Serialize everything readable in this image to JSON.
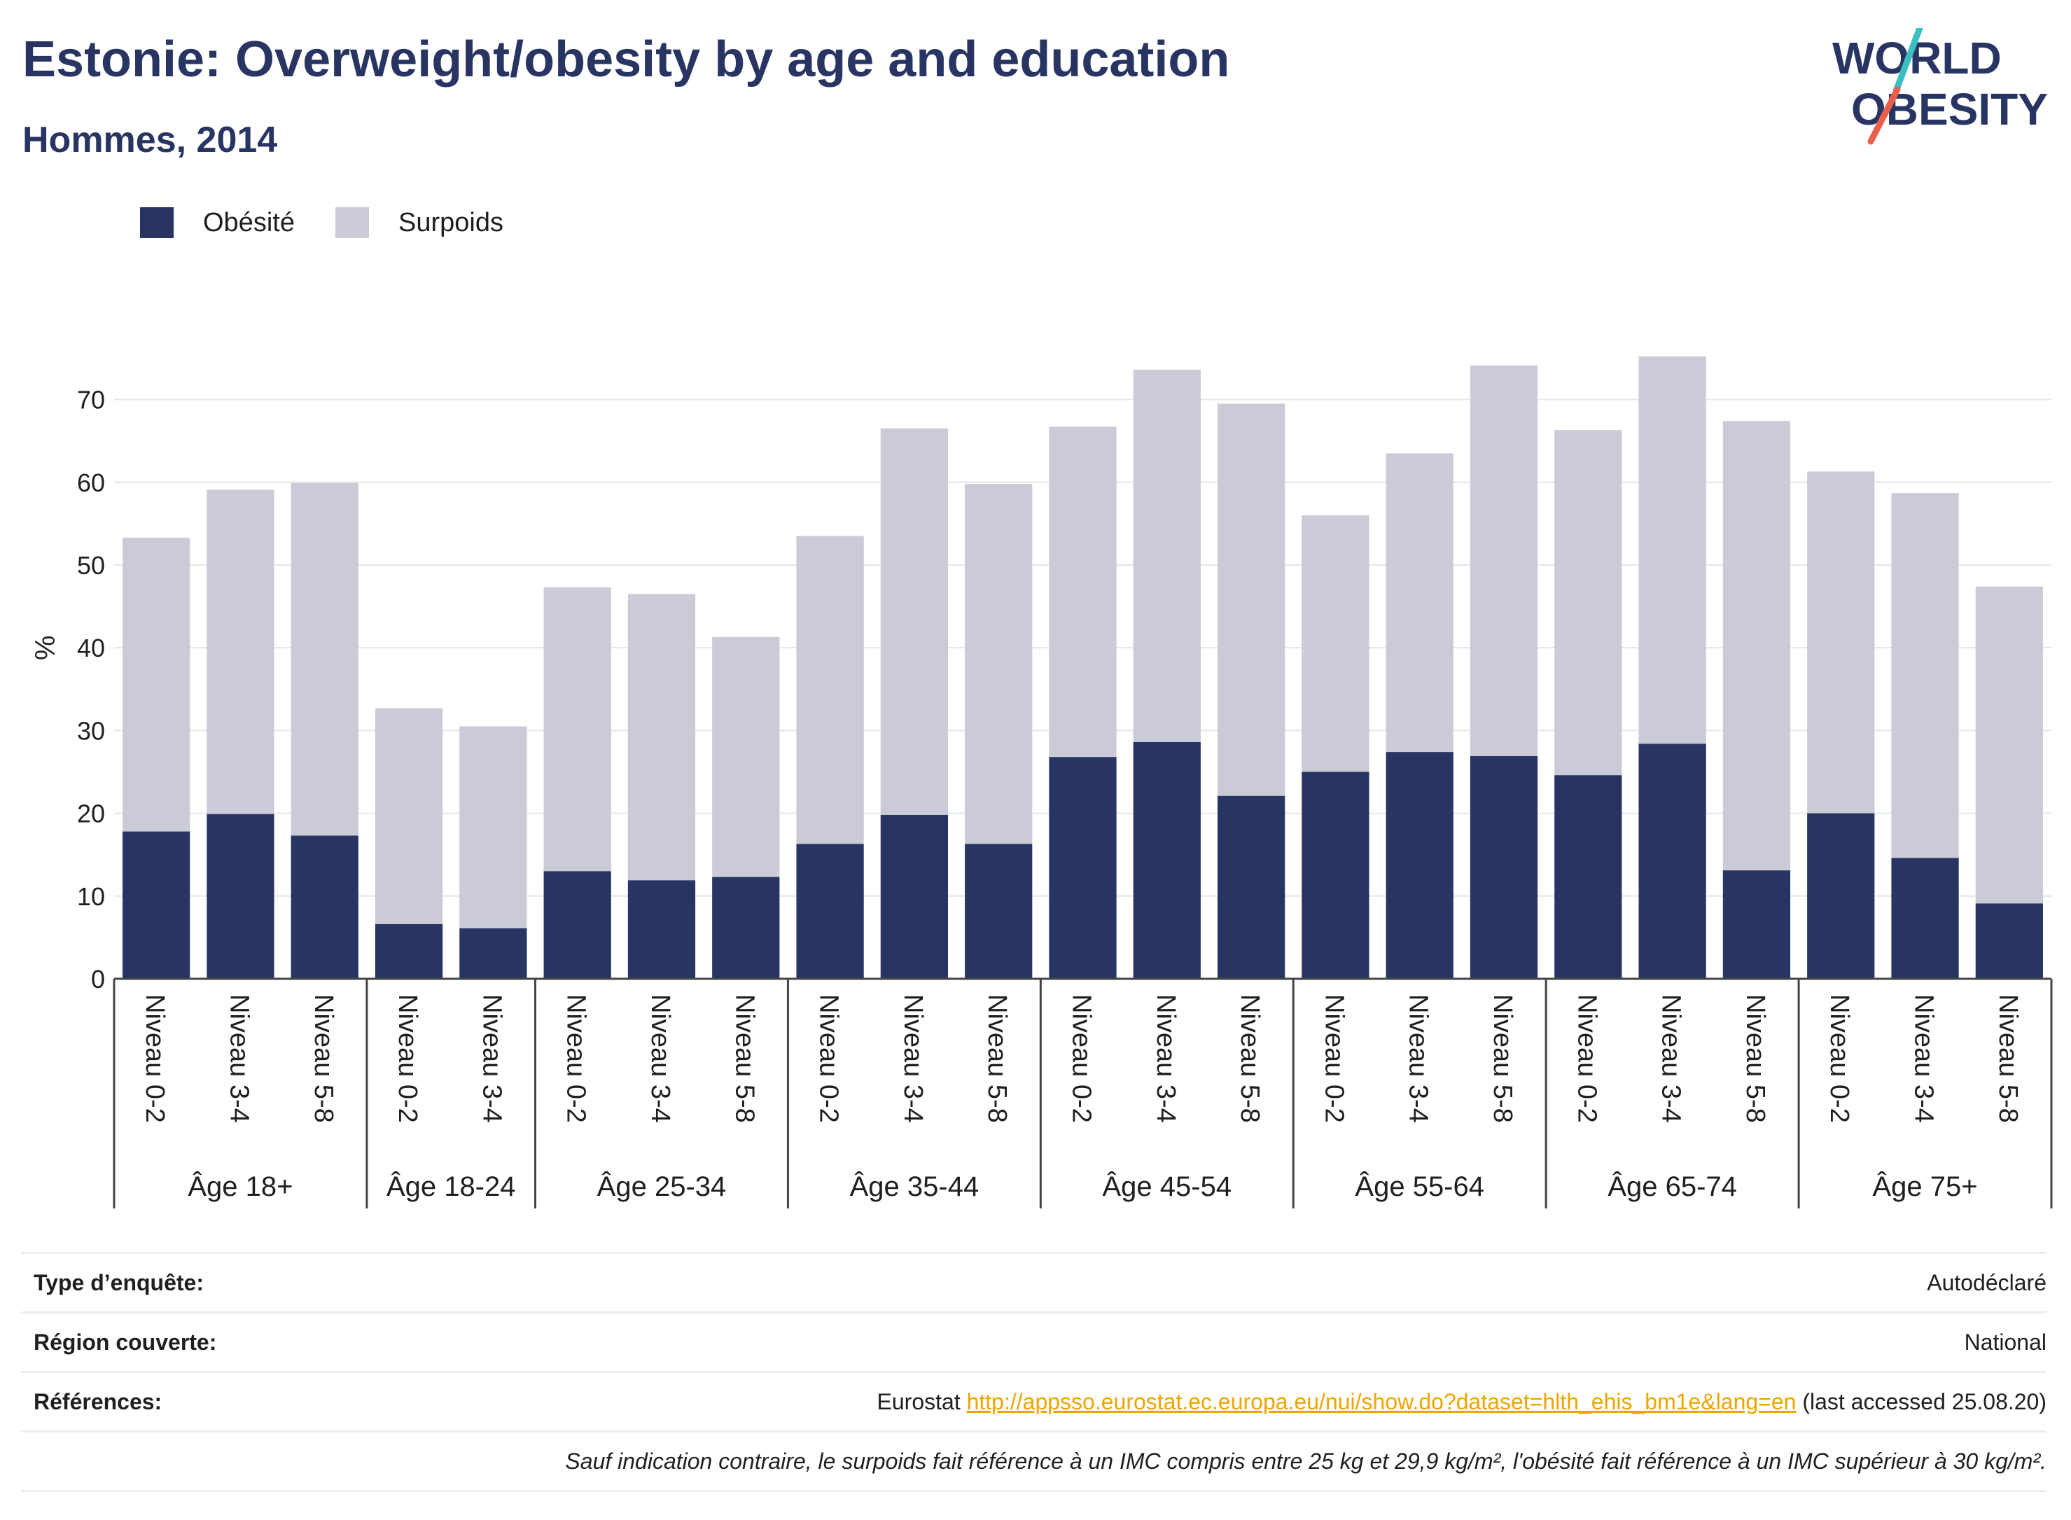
{
  "header": {
    "title": "Estonie: Overweight/obesity by age and education",
    "subtitle": "Hommes, 2014"
  },
  "logo": {
    "line1": "WORLD",
    "line2": "OBESITY",
    "colors": {
      "text": "#283462",
      "slash_top": "#3cbfc0",
      "slash_bottom": "#e8604c"
    }
  },
  "colors": {
    "obesity": "#283462",
    "overweight": "#cacbd7",
    "grid": "#e6e6ea",
    "axis": "#444444"
  },
  "chart_data": {
    "type": "bar",
    "stacked": true,
    "title": "Estonie: Overweight/obesity by age and education",
    "subtitle": "Hommes, 2014",
    "ylabel": "%",
    "ylim": [
      0,
      78
    ],
    "yticks": [
      0,
      10,
      20,
      30,
      40,
      50,
      60,
      70
    ],
    "grid": true,
    "legend_position": "top-left",
    "groups": [
      {
        "label": "Âge 18+",
        "categories": [
          "Niveau 0-2",
          "Niveau 3-4",
          "Niveau 5-8"
        ]
      },
      {
        "label": "Âge 18-24",
        "categories": [
          "Niveau 0-2",
          "Niveau 3-4"
        ]
      },
      {
        "label": "Âge 25-34",
        "categories": [
          "Niveau 0-2",
          "Niveau 3-4",
          "Niveau 5-8"
        ]
      },
      {
        "label": "Âge 35-44",
        "categories": [
          "Niveau 0-2",
          "Niveau 3-4",
          "Niveau 5-8"
        ]
      },
      {
        "label": "Âge 45-54",
        "categories": [
          "Niveau 0-2",
          "Niveau 3-4",
          "Niveau 5-8"
        ]
      },
      {
        "label": "Âge 55-64",
        "categories": [
          "Niveau 0-2",
          "Niveau 3-4",
          "Niveau 5-8"
        ]
      },
      {
        "label": "Âge 65-74",
        "categories": [
          "Niveau 0-2",
          "Niveau 3-4",
          "Niveau 5-8"
        ]
      },
      {
        "label": "Âge 75+",
        "categories": [
          "Niveau 0-2",
          "Niveau 3-4",
          "Niveau 5-8"
        ]
      }
    ],
    "series": [
      {
        "name": "Obésité",
        "color": "#283462",
        "values": [
          17.8,
          19.9,
          17.3,
          6.6,
          6.1,
          13.0,
          11.9,
          12.3,
          16.3,
          19.8,
          16.3,
          26.8,
          28.6,
          22.1,
          25.0,
          27.4,
          26.9,
          24.6,
          28.4,
          13.1,
          20.0,
          14.6,
          9.1
        ]
      },
      {
        "name": "Surpoids",
        "color": "#cacbd7",
        "values": [
          35.5,
          39.2,
          42.6,
          26.1,
          24.4,
          34.3,
          34.6,
          29.0,
          37.2,
          46.7,
          43.5,
          39.9,
          45.0,
          47.4,
          31.0,
          36.1,
          47.2,
          41.7,
          46.8,
          54.3,
          41.3,
          44.1,
          38.3
        ]
      }
    ]
  },
  "info": {
    "rows": [
      {
        "label": "Type d’enquête:",
        "value": "Autodéclaré"
      },
      {
        "label": "Région couverte:",
        "value": "National"
      },
      {
        "label": "Références:",
        "prefix": "Eurostat ",
        "link": "http://appsso.eurostat.ec.europa.eu/nui/show.do?dataset=hlth_ehis_bm1e&lang=en",
        "suffix": " (last accessed 25.08.20)"
      }
    ],
    "note": "Sauf indication contraire, le surpoids fait référence à un IMC compris entre 25 kg et 29,9 kg/m², l'obésité fait référence à un IMC supérieur à 30 kg/m²."
  }
}
